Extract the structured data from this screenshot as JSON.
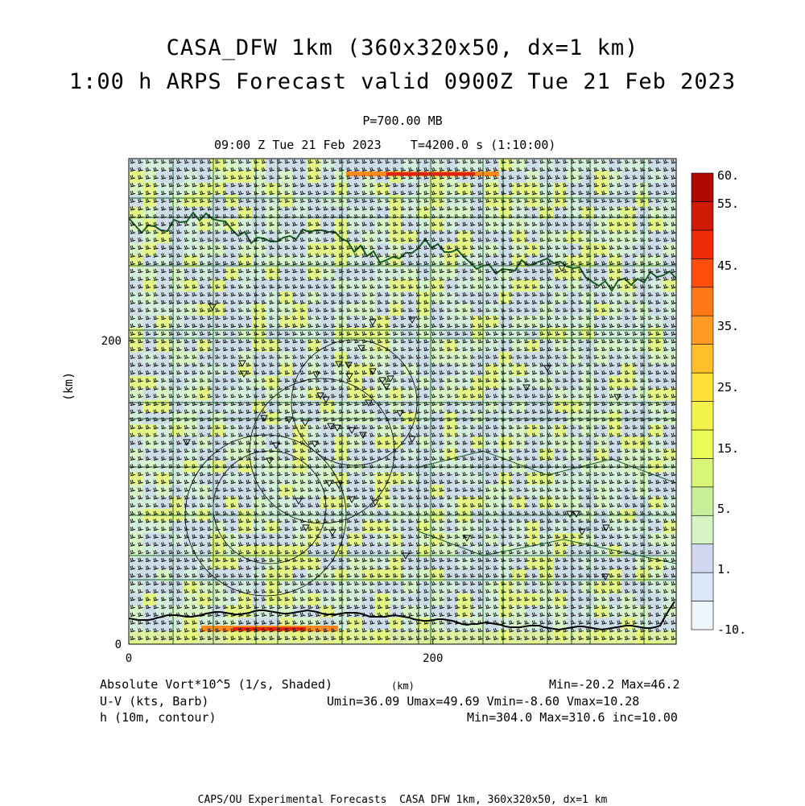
{
  "header": {
    "title_line1": "CASA_DFW 1km (360x320x50, dx=1 km)",
    "title_line2": "1:00 h ARPS Forecast valid 0900Z Tue 21 Feb 2023",
    "level": "P=700.00 MB",
    "time_line": "09:00 Z Tue 21 Feb 2023    T=4200.0 s (1:10:00)"
  },
  "footer": {
    "var1": "Absolute Vort*10^5 (1/s, Shaded)",
    "km_label": "(km)",
    "minmax1": "Min=-20.2 Max=46.2",
    "var2": "U-V (kts, Barb)",
    "uv_stats": "Umin=36.09 Umax=49.69 Vmin=-8.60 Vmax=10.28",
    "var3": "h (10m, contour)",
    "h_stats": "Min=304.0 Max=310.6 inc=10.00",
    "credit": "CAPS/OU Experimental Forecasts  CASA DFW 1km, 360x320x50, dx=1 km"
  },
  "colors": {
    "map_lines": "#1a5c2a",
    "barb": "#000000",
    "shade_light_blue": "#cdd9ee",
    "shade_light_green": "#d8f5c6",
    "shade_yellow_green": "#e6f77a",
    "shade_orange": "#ff8a1c",
    "shade_red": "#e0240e"
  },
  "chart_data": {
    "type": "heatmap",
    "title": "CASA_DFW 1km (360x320x50, dx=1 km)",
    "subtitle": "1:00 h ARPS Forecast valid 0900Z Tue 21 Feb 2023",
    "ylabel": "(km)",
    "xlabel": "(km)",
    "xlim": [
      0,
      360
    ],
    "ylim": [
      0,
      320
    ],
    "x_ticks": [
      "0",
      "200"
    ],
    "y_ticks": [
      "0",
      "200"
    ],
    "colorbar": {
      "labels": [
        "-10.",
        "1.",
        "5.",
        "15.",
        "25.",
        "35.",
        "45.",
        "55.",
        "60."
      ],
      "colors": [
        "#eef6fb",
        "#dbe8f7",
        "#cfd8f0",
        "#d6f3c4",
        "#c8ee9a",
        "#d8f578",
        "#e8fb56",
        "#f3f24a",
        "#ffe03a",
        "#ffc02a",
        "#ff9a22",
        "#ff7a16",
        "#ff4e0c",
        "#ee2a08",
        "#d01a06",
        "#b00802"
      ],
      "value_range": [
        -10,
        60
      ]
    },
    "field_min": -20.2,
    "field_max": 46.2,
    "wind_barb_u_range": [
      36.09,
      49.69
    ],
    "wind_barb_v_range": [
      -8.6,
      10.28
    ],
    "height_range": [
      304.0,
      310.6
    ],
    "height_contour_interval": 10.0
  }
}
